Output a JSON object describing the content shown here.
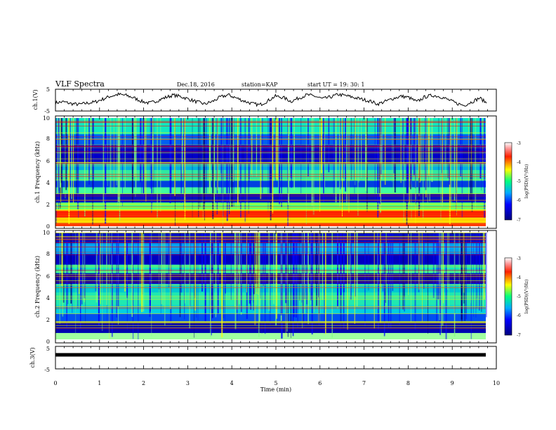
{
  "header": {
    "title": "VLF Spectra",
    "date": "Dec.18, 2016",
    "station": "station=KAP",
    "start": "start  UT =   19: 30: 1"
  },
  "chart_data": [
    {
      "type": "line",
      "panel": "ch1-waveform",
      "ylabel": "ch.1(V)",
      "ylim": [
        -5,
        5
      ],
      "ytick_labels": [
        "5",
        "-5"
      ],
      "xlim": [
        0,
        10
      ],
      "series": [
        {
          "values": [
            -1.2,
            -0.8,
            -1.6,
            -2.0,
            -1.4,
            -0.9,
            0.4,
            1.8,
            2.6,
            2.2,
            1.0,
            -0.6,
            -1.4,
            -0.2,
            1.2,
            2.3,
            1.6,
            0.4,
            -0.8,
            -1.8,
            -0.6,
            1.4,
            2.4,
            1.0,
            -0.4,
            -1.6,
            -2.2,
            -0.4,
            1.8,
            1.2,
            -0.6,
            1.0,
            2.4,
            1.8,
            0.6,
            1.4,
            2.6,
            2.0,
            1.2,
            0.4,
            -0.4,
            -1.8,
            -0.6,
            0.8,
            1.8,
            1.2,
            -0.8,
            1.4,
            2.2,
            1.6,
            0.2,
            -1.4,
            -2.4,
            -0.8,
            1.0,
            -1.6
          ]
        }
      ]
    },
    {
      "type": "heatmap",
      "panel": "ch1-spectrogram",
      "ylabel": "ch.1 Frequency (kHz)",
      "ylim": [
        0,
        10
      ],
      "ytick_labels": [
        "0",
        "2",
        "4",
        "6",
        "8",
        "10"
      ],
      "xlim": [
        0,
        10
      ],
      "colorbar": {
        "label": "log(PSD)(V²/Hz)",
        "range": [
          -7,
          -3
        ],
        "tick_labels": [
          "-3",
          "-4",
          "-5",
          "-6",
          "-7"
        ]
      }
    },
    {
      "type": "heatmap",
      "panel": "ch2-spectrogram",
      "ylabel": "ch.2 Frequency (kHz)",
      "ylim": [
        0,
        10
      ],
      "ytick_labels": [
        "0",
        "2",
        "4",
        "6",
        "8",
        "10"
      ],
      "xlim": [
        0,
        10
      ],
      "colorbar": {
        "label": "log(PSD)(V²/Hz)",
        "range": [
          -7,
          -3
        ],
        "tick_labels": [
          "-3",
          "-4",
          "-5",
          "-6",
          "-7"
        ]
      }
    },
    {
      "type": "line",
      "panel": "ch3-waveform",
      "ylabel": "ch.3(V)",
      "ylim": [
        -5,
        5
      ],
      "ytick_labels": [
        "5",
        "-5"
      ],
      "xlim": [
        0,
        10
      ],
      "series": [
        {
          "values": [
            0,
            0
          ]
        }
      ]
    }
  ],
  "xaxis": {
    "label": "Time  (min)",
    "tick_labels": [
      "0",
      "1",
      "2",
      "3",
      "4",
      "5",
      "6",
      "7",
      "8",
      "9",
      "10"
    ]
  },
  "colors": {
    "colormap": [
      "#00007f",
      "#0000ff",
      "#007fff",
      "#00ffff",
      "#7fff7f",
      "#ffff00",
      "#ff7f00",
      "#ff0000",
      "#ffffff"
    ]
  }
}
